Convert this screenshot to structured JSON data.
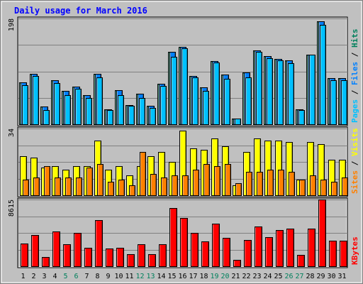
{
  "title": "Daily usage for March 2016",
  "colors": {
    "background": "#ffffff",
    "frame": "#c0c0c0",
    "plot_bg": "#c0c0c0",
    "title": "#0000ff",
    "hits": "#00805c",
    "files": "#0080ff",
    "pages": "#00c0ff",
    "visits": "#ffff00",
    "sites": "#ff8000",
    "kbytes": "#ff0000",
    "weekday_label": "#000000",
    "weekend_label": "#00805c"
  },
  "chart_data": [
    {
      "type": "bar",
      "panel": "top",
      "title": "",
      "y_axis_max_label": "198",
      "ylim": [
        0,
        198
      ],
      "grid": true,
      "right_label_parts": [
        "Pages",
        " / ",
        "Files",
        " / ",
        "Hits"
      ],
      "categories": [
        "1",
        "2",
        "3",
        "4",
        "5",
        "6",
        "7",
        "8",
        "9",
        "10",
        "11",
        "12",
        "13",
        "14",
        "15",
        "16",
        "17",
        "18",
        "19",
        "20",
        "21",
        "22",
        "23",
        "24",
        "25",
        "26",
        "27",
        "28",
        "29",
        "30",
        "31"
      ],
      "weekend_days": [
        "5",
        "6",
        "12",
        "13",
        "19",
        "20",
        "26",
        "27"
      ],
      "series": [
        {
          "name": "Hits",
          "values": [
            79,
            95,
            33,
            82,
            63,
            71,
            55,
            95,
            28,
            64,
            36,
            57,
            35,
            76,
            136,
            145,
            91,
            69,
            118,
            93,
            11,
            97,
            138,
            128,
            122,
            119,
            28,
            130,
            193,
            86,
            86
          ]
        },
        {
          "name": "Files",
          "values": [
            79,
            95,
            33,
            82,
            63,
            71,
            55,
            95,
            28,
            64,
            36,
            57,
            35,
            76,
            136,
            145,
            91,
            69,
            118,
            93,
            11,
            97,
            138,
            128,
            122,
            119,
            28,
            130,
            193,
            86,
            86
          ]
        },
        {
          "name": "Pages",
          "values": [
            73,
            91,
            27,
            77,
            55,
            67,
            49,
            88,
            26,
            55,
            34,
            49,
            31,
            72,
            126,
            142,
            88,
            63,
            116,
            85,
            10,
            88,
            136,
            123,
            120,
            114,
            26,
            130,
            186,
            82,
            82
          ]
        }
      ]
    },
    {
      "type": "bar",
      "panel": "middle",
      "title": "",
      "y_axis_max_label": "34",
      "ylim": [
        0,
        34
      ],
      "grid": true,
      "right_label_parts": [
        "Sites",
        " / ",
        "Visits"
      ],
      "categories": [
        "1",
        "2",
        "3",
        "4",
        "5",
        "6",
        "7",
        "8",
        "9",
        "10",
        "11",
        "12",
        "13",
        "14",
        "15",
        "16",
        "17",
        "18",
        "19",
        "20",
        "21",
        "22",
        "23",
        "24",
        "25",
        "26",
        "27",
        "28",
        "29",
        "30",
        "31"
      ],
      "series": [
        {
          "name": "Visits",
          "values": [
            20,
            19,
            14,
            15,
            13,
            15,
            15,
            28,
            13,
            15,
            10,
            15,
            20,
            22,
            17,
            33,
            24,
            23,
            29,
            25,
            5,
            22,
            29,
            28,
            28,
            27,
            8,
            27,
            26,
            18,
            18
          ]
        },
        {
          "name": "Sites",
          "values": [
            8,
            9,
            15,
            9,
            9,
            9,
            14,
            16,
            7,
            8,
            5,
            22,
            11,
            9,
            10,
            10,
            13,
            16,
            15,
            16,
            6,
            12,
            12,
            13,
            13,
            12,
            8,
            10,
            8,
            7,
            9
          ]
        }
      ]
    },
    {
      "type": "bar",
      "panel": "bottom",
      "title": "",
      "y_axis_max_label": "8615",
      "ylim": [
        0,
        8615
      ],
      "grid": true,
      "right_label_parts": [
        "KBytes"
      ],
      "categories": [
        "1",
        "2",
        "3",
        "4",
        "5",
        "6",
        "7",
        "8",
        "9",
        "10",
        "11",
        "12",
        "13",
        "14",
        "15",
        "16",
        "17",
        "18",
        "19",
        "20",
        "21",
        "22",
        "23",
        "24",
        "25",
        "26",
        "27",
        "28",
        "29",
        "30",
        "31"
      ],
      "series": [
        {
          "name": "KBytes",
          "values": [
            2900,
            4000,
            1200,
            4500,
            2800,
            4300,
            2400,
            6000,
            2300,
            2400,
            1600,
            2800,
            1600,
            2800,
            7500,
            6200,
            4300,
            3200,
            5500,
            3700,
            800,
            3400,
            5100,
            3800,
            4700,
            4900,
            1500,
            4900,
            8615,
            3300,
            3300
          ]
        }
      ]
    }
  ]
}
